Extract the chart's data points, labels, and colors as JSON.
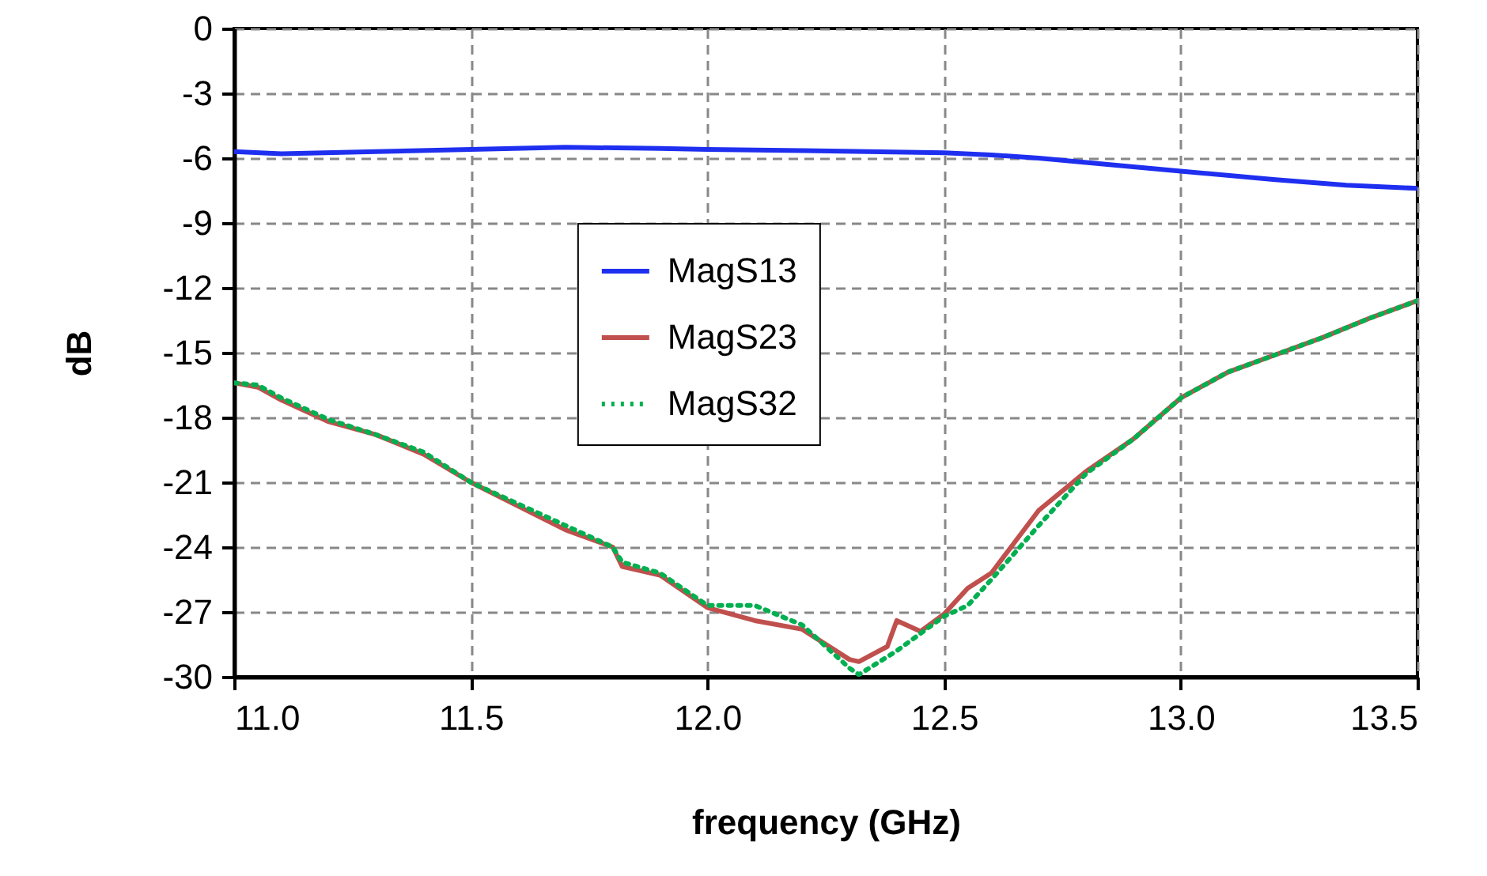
{
  "chart_data": {
    "type": "line",
    "xlabel": "frequency (GHz)",
    "ylabel": "dB",
    "xlim": [
      11,
      13.5
    ],
    "xticks": [
      {
        "value": 11,
        "label": "11.0"
      },
      {
        "value": 11.5,
        "label": "11.5"
      },
      {
        "value": 12,
        "label": "12.0"
      },
      {
        "value": 12.5,
        "label": "12.5"
      },
      {
        "value": 13,
        "label": "13.0"
      },
      {
        "value": 13.5,
        "label": "13.5"
      }
    ],
    "ylim": [
      -30,
      0
    ],
    "yticks": [
      0,
      -3,
      -6,
      -9,
      -12,
      -15,
      -18,
      -21,
      -24,
      -27,
      -30
    ],
    "grid": true,
    "legend": "top",
    "marker": "none",
    "series": [
      {
        "name": "MagS13",
        "color": "#1f2ff0",
        "line_style": "solid",
        "x": [
          11.0,
          11.1,
          11.3,
          11.5,
          11.7,
          11.9,
          12.0,
          12.2,
          12.5,
          12.6,
          12.7,
          12.8,
          13.0,
          13.2,
          13.35,
          13.5
        ],
        "values": [
          -5.7,
          -5.8,
          -5.7,
          -5.6,
          -5.5,
          -5.55,
          -5.6,
          -5.65,
          -5.75,
          -5.85,
          -6.0,
          -6.2,
          -6.6,
          -7.0,
          -7.25,
          -7.4
        ]
      },
      {
        "name": "MagS23",
        "color": "#c0504d",
        "line_style": "solid",
        "x": [
          11.0,
          11.05,
          11.1,
          11.2,
          11.3,
          11.4,
          11.5,
          11.6,
          11.7,
          11.8,
          11.82,
          11.9,
          12.0,
          12.1,
          12.2,
          12.3,
          12.32,
          12.38,
          12.4,
          12.45,
          12.5,
          12.55,
          12.6,
          12.7,
          12.8,
          12.9,
          13.0,
          13.1,
          13.2,
          13.3,
          13.4,
          13.5
        ],
        "values": [
          -16.4,
          -16.6,
          -17.2,
          -18.2,
          -18.8,
          -19.7,
          -21.0,
          -22.1,
          -23.2,
          -24.0,
          -24.9,
          -25.3,
          -26.8,
          -27.4,
          -27.8,
          -29.2,
          -29.3,
          -28.6,
          -27.4,
          -27.9,
          -27.1,
          -25.9,
          -25.2,
          -22.3,
          -20.5,
          -19.0,
          -17.1,
          -15.9,
          -15.1,
          -14.3,
          -13.4,
          -12.6
        ]
      },
      {
        "name": "MagS32",
        "color": "#00b050",
        "line_style": "dotted",
        "x": [
          11.0,
          11.05,
          11.1,
          11.2,
          11.3,
          11.4,
          11.5,
          11.6,
          11.7,
          11.8,
          11.82,
          11.9,
          12.0,
          12.1,
          12.2,
          12.3,
          12.32,
          12.4,
          12.45,
          12.5,
          12.55,
          12.6,
          12.7,
          12.8,
          12.9,
          13.0,
          13.1,
          13.2,
          13.3,
          13.4,
          13.5
        ],
        "values": [
          -16.4,
          -16.5,
          -17.1,
          -18.1,
          -18.8,
          -19.6,
          -21.0,
          -22.0,
          -23.0,
          -24.0,
          -24.7,
          -25.2,
          -26.7,
          -26.7,
          -27.6,
          -29.6,
          -29.9,
          -28.8,
          -28.0,
          -27.2,
          -26.7,
          -25.5,
          -23.0,
          -20.6,
          -19.0,
          -17.1,
          -15.9,
          -15.1,
          -14.3,
          -13.4,
          -12.6
        ]
      }
    ]
  }
}
